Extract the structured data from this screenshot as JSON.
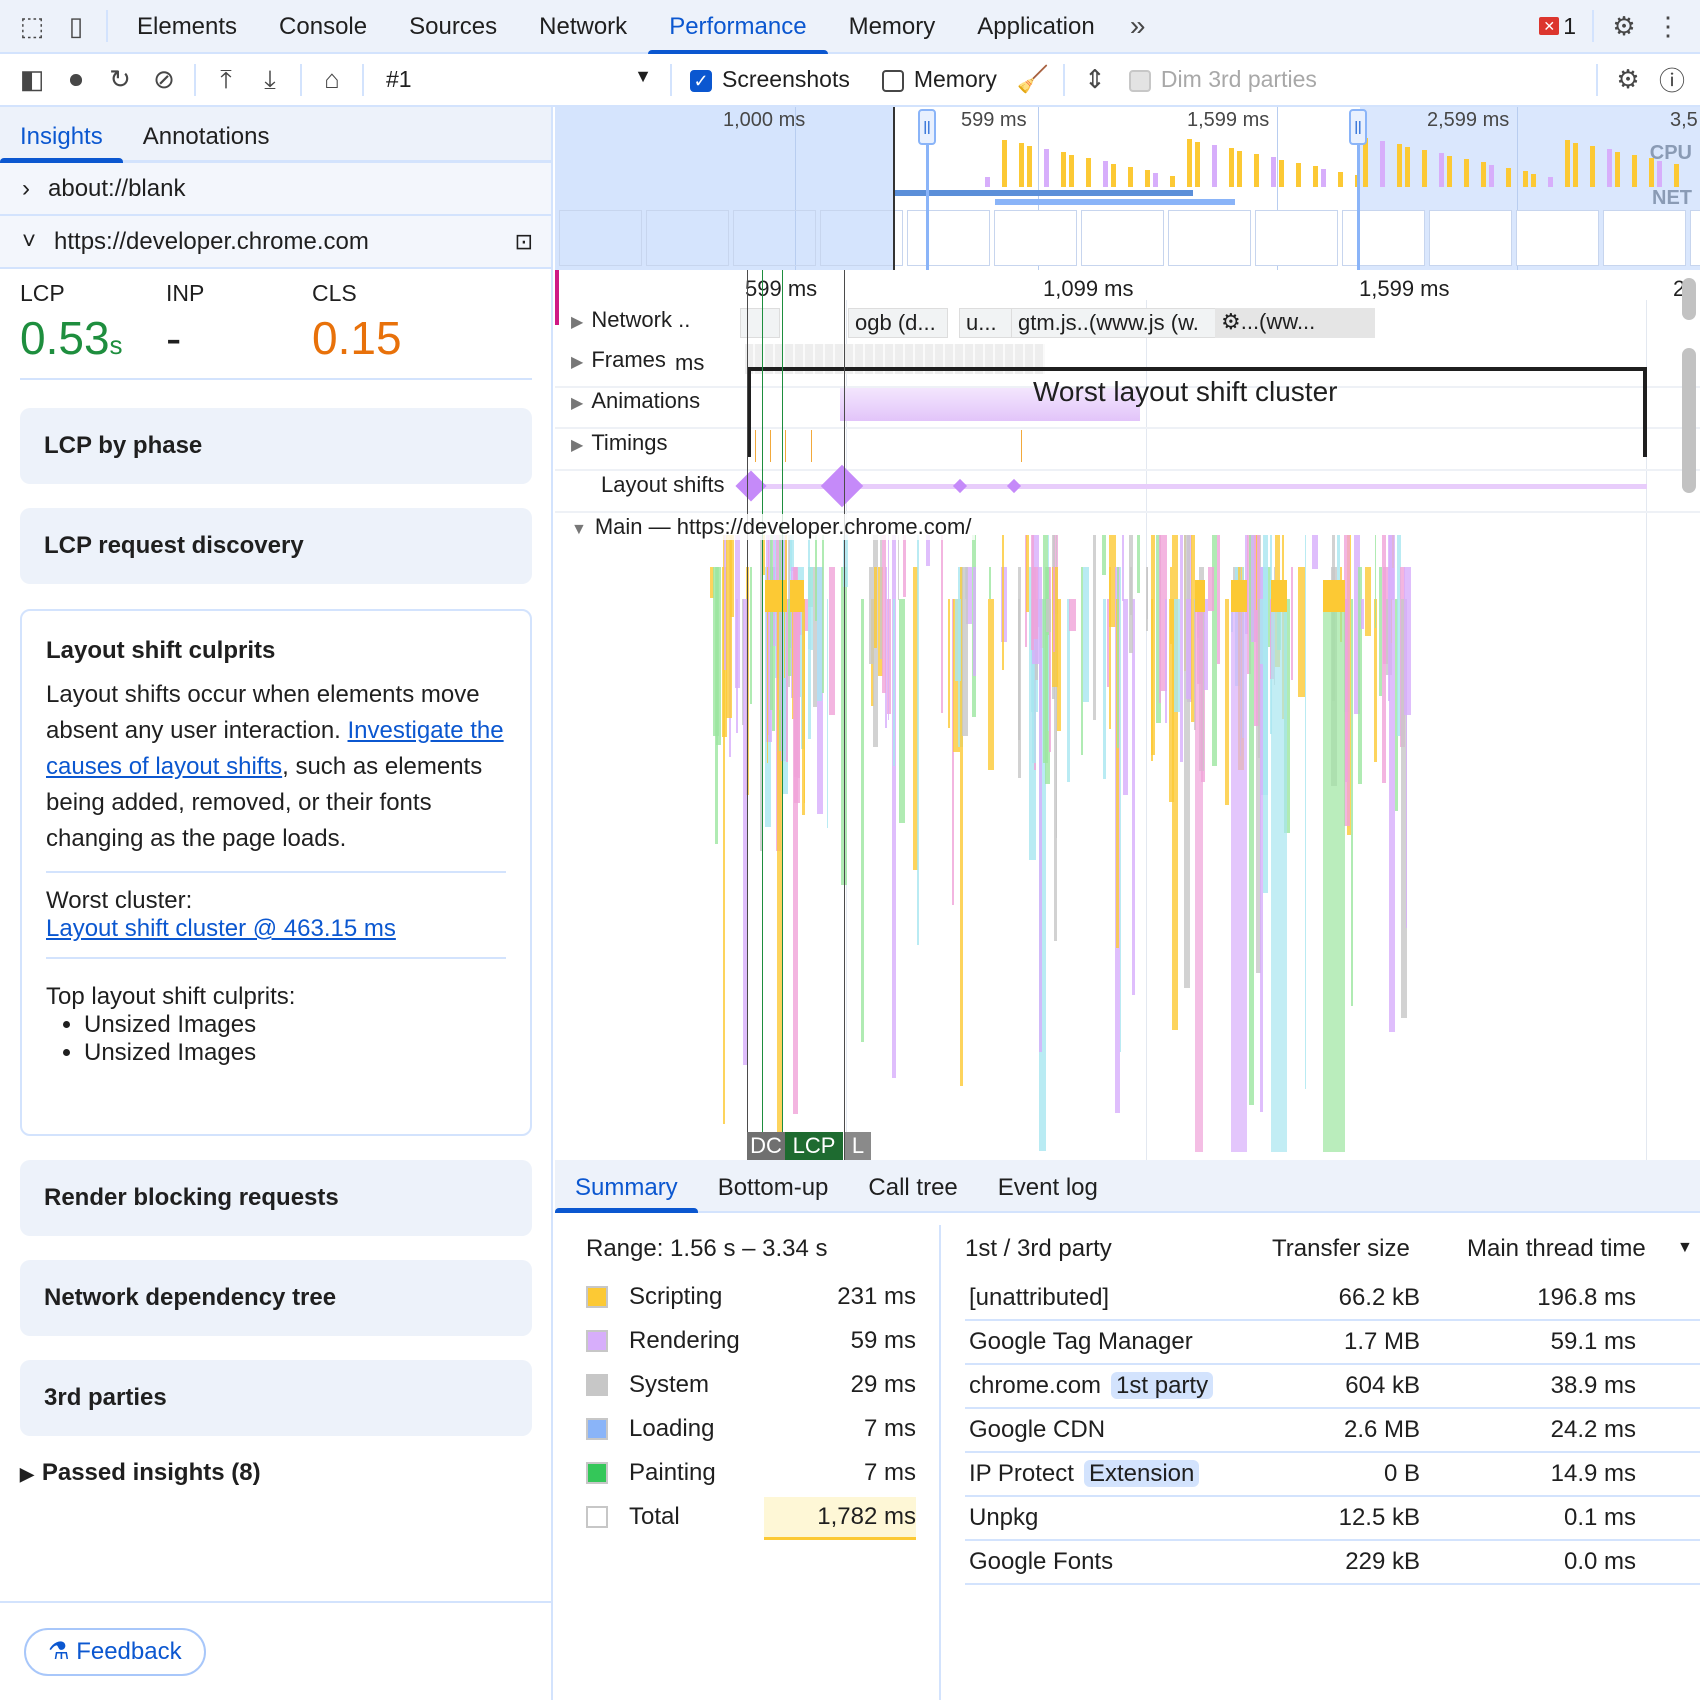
{
  "devtools_tabs": [
    "Elements",
    "Console",
    "Sources",
    "Network",
    "Performance",
    "Memory",
    "Application"
  ],
  "active_tab": "Performance",
  "error_count": "1",
  "toolbar": {
    "recording": "#1",
    "screenshots_label": "Screenshots",
    "screenshots_checked": true,
    "memory_label": "Memory",
    "memory_checked": false,
    "dim_label": "Dim 3rd parties"
  },
  "left": {
    "tabs": [
      "Insights",
      "Annotations"
    ],
    "pages": [
      "about://blank",
      "https://developer.chrome.com"
    ],
    "metrics": [
      {
        "label": "LCP",
        "value": "0.53",
        "unit": "s",
        "color": "#1e8e3e"
      },
      {
        "label": "INP",
        "value": "-",
        "unit": "",
        "color": "#1f1f1f"
      },
      {
        "label": "CLS",
        "value": "0.15",
        "unit": "",
        "color": "#e8710a"
      }
    ],
    "cards_top": [
      "LCP by phase",
      "LCP request discovery"
    ],
    "culprits": {
      "title": "Layout shift culprits",
      "text1": "Layout shifts occur when elements move absent any user interaction.",
      "link": "Investigate the causes of layout shifts",
      "text2": ", such as elements being added, removed, or their fonts changing as the page loads.",
      "worst_label": "Worst cluster:",
      "worst_link": "Layout shift cluster @ 463.15 ms",
      "top_label": "Top layout shift culprits:",
      "items": [
        "Unsized Images",
        "Unsized Images"
      ]
    },
    "cards_bottom": [
      "Render blocking requests",
      "Network dependency tree",
      "3rd parties"
    ],
    "passed": "Passed insights (8)",
    "feedback": "Feedback"
  },
  "overview": {
    "ticks": [
      "1,000 ms",
      "599 ms",
      "1,599 ms",
      "2,599 ms",
      "3,5"
    ],
    "cpu": "CPU",
    "net": "NET"
  },
  "timeline": {
    "ticks": [
      "599 ms",
      "1,099 ms",
      "1,599 ms",
      "2"
    ],
    "tracks": [
      "Network ..",
      "Frames",
      "Animations",
      "Timings",
      "Layout shifts",
      "Main — https://developer.chrome.com/"
    ],
    "network_items": [
      "ogb (d...",
      "u...",
      "gtm.js..(www.js (w.",
      "⚙...(ww..."
    ],
    "frames_extra": "ms",
    "cluster_label": "Worst layout shift cluster",
    "markers": [
      "DC",
      "LCP",
      "L"
    ]
  },
  "bottom": {
    "tabs": [
      "Summary",
      "Bottom-up",
      "Call tree",
      "Event log"
    ],
    "range": "Range: 1.56 s – 3.34 s",
    "categories": [
      {
        "name": "Scripting",
        "value": "231 ms",
        "color": "#fcc934"
      },
      {
        "name": "Rendering",
        "value": "59 ms",
        "color": "#d7aefb"
      },
      {
        "name": "System",
        "value": "29 ms",
        "color": "#c7c7c7"
      },
      {
        "name": "Loading",
        "value": "7 ms",
        "color": "#8ab4f8"
      },
      {
        "name": "Painting",
        "value": "7 ms",
        "color": "#34c759"
      },
      {
        "name": "Total",
        "value": "1,782 ms",
        "color": "#ffffff"
      }
    ],
    "party_headers": [
      "1st / 3rd party",
      "Transfer size",
      "Main thread time"
    ],
    "parties": [
      {
        "name": "[unattributed]",
        "badge": "",
        "size": "66.2 kB",
        "time": "196.8 ms"
      },
      {
        "name": "Google Tag Manager",
        "badge": "",
        "size": "1.7 MB",
        "time": "59.1 ms"
      },
      {
        "name": "chrome.com",
        "badge": "1st party",
        "size": "604 kB",
        "time": "38.9 ms"
      },
      {
        "name": "Google CDN",
        "badge": "",
        "size": "2.6 MB",
        "time": "24.2 ms"
      },
      {
        "name": "IP Protect",
        "badge": "Extension",
        "size": "0 B",
        "time": "14.9 ms"
      },
      {
        "name": "Unpkg",
        "badge": "",
        "size": "12.5 kB",
        "time": "0.1 ms"
      },
      {
        "name": "Google Fonts",
        "badge": "",
        "size": "229 kB",
        "time": "0.0 ms"
      }
    ]
  }
}
